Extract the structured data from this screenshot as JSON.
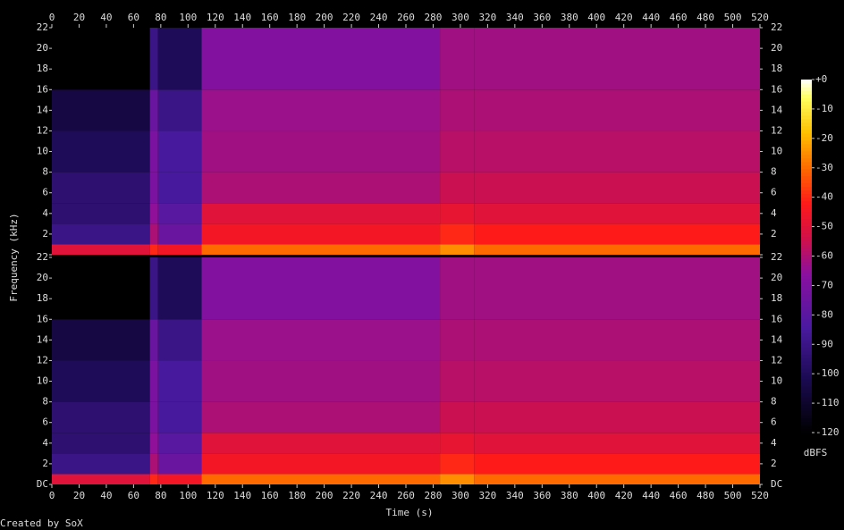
{
  "chart_data": {
    "type": "spectrogram",
    "xlabel": "Time (s)",
    "ylabel": "Frequency (kHz)",
    "colorbar_label": "dBFS",
    "credit": "Created by SoX",
    "xlim": [
      0,
      520
    ],
    "xticks": [
      0,
      20,
      40,
      60,
      80,
      100,
      120,
      140,
      160,
      180,
      200,
      220,
      240,
      260,
      280,
      300,
      320,
      340,
      360,
      380,
      400,
      420,
      440,
      460,
      480,
      500,
      520
    ],
    "ylim": [
      0,
      22
    ],
    "yticks": [
      {
        "value": 0,
        "label": "DC"
      },
      2,
      4,
      6,
      8,
      10,
      12,
      14,
      16,
      18,
      20,
      22
    ],
    "clim": [
      -120,
      0
    ],
    "cticks": [
      {
        "value": 0,
        "label": "+0"
      },
      -10,
      -20,
      -30,
      -40,
      -50,
      -60,
      -70,
      -80,
      -90,
      -100,
      -110,
      -120
    ],
    "time_edges": [
      0,
      72,
      78,
      110,
      285,
      310,
      520
    ],
    "freq_edges": [
      0,
      1,
      3,
      5,
      8,
      12,
      16,
      22
    ],
    "channels": [
      {
        "z": [
          [
            -50,
            -40,
            -45,
            -30,
            -25,
            -30
          ],
          [
            -90,
            -60,
            -75,
            -45,
            -40,
            -42
          ],
          [
            -95,
            -65,
            -80,
            -50,
            -48,
            -50
          ],
          [
            -95,
            -70,
            -85,
            -60,
            -55,
            -55
          ],
          [
            -100,
            -70,
            -85,
            -62,
            -58,
            -58
          ],
          [
            -105,
            -75,
            -90,
            -63,
            -60,
            -60
          ],
          [
            -120,
            -90,
            -100,
            -68,
            -62,
            -62
          ]
        ]
      },
      {
        "z": [
          [
            -50,
            -40,
            -45,
            -30,
            -25,
            -30
          ],
          [
            -90,
            -60,
            -75,
            -45,
            -40,
            -42
          ],
          [
            -95,
            -65,
            -80,
            -50,
            -48,
            -50
          ],
          [
            -95,
            -70,
            -85,
            -60,
            -55,
            -55
          ],
          [
            -100,
            -70,
            -85,
            -62,
            -58,
            -58
          ],
          [
            -105,
            -75,
            -90,
            -63,
            -60,
            -60
          ],
          [
            -120,
            -90,
            -100,
            -68,
            -62,
            -62
          ]
        ]
      }
    ]
  }
}
